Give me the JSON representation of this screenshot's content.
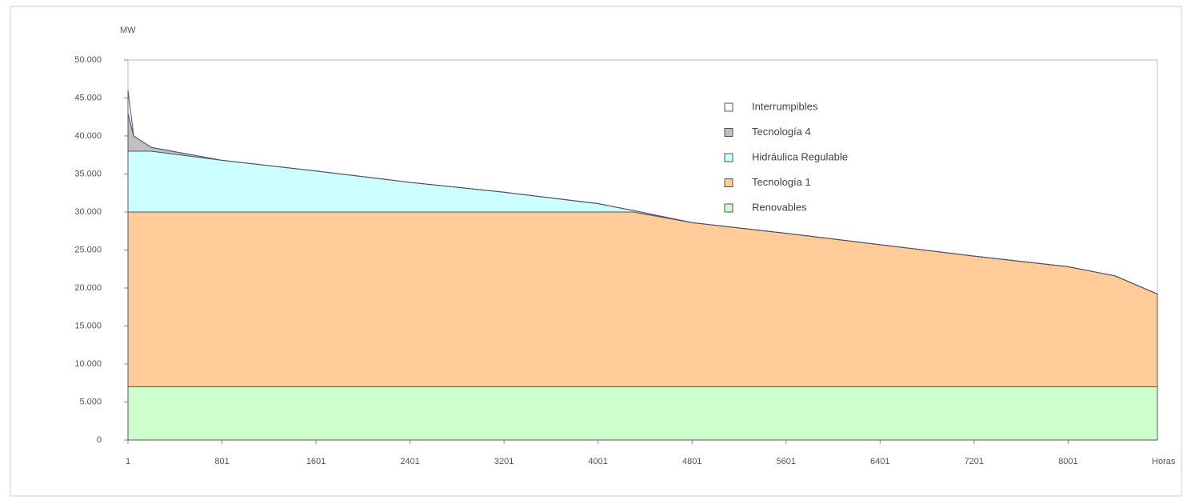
{
  "chart_data": {
    "type": "stacked-area",
    "y_label": "MW",
    "x_label": "Horas",
    "x": [
      1,
      50,
      200,
      801,
      1601,
      2401,
      3201,
      4001,
      4300,
      4801,
      5601,
      6401,
      7201,
      8001,
      8400,
      8761
    ],
    "xlim": [
      1,
      8761
    ],
    "xticks": [
      1,
      801,
      1601,
      2401,
      3201,
      4001,
      4801,
      5601,
      6401,
      7201,
      8001
    ],
    "ylim": [
      0,
      50000
    ],
    "yticks": [
      {
        "value": 0,
        "label": "0"
      },
      {
        "value": 5000,
        "label": "5.000"
      },
      {
        "value": 10000,
        "label": "10.000"
      },
      {
        "value": 15000,
        "label": "15.000"
      },
      {
        "value": 20000,
        "label": "20.000"
      },
      {
        "value": 25000,
        "label": "25.000"
      },
      {
        "value": 30000,
        "label": "30.000"
      },
      {
        "value": 35000,
        "label": "35.000"
      },
      {
        "value": 40000,
        "label": "40.000"
      },
      {
        "value": 45000,
        "label": "45.000"
      },
      {
        "value": 50000,
        "label": "50.000"
      }
    ],
    "grid": false,
    "legend": "upper-right",
    "series": [
      {
        "name": "Interrumpibles",
        "color": "#ffffff",
        "values": [
          3000,
          0,
          0,
          0,
          0,
          0,
          0,
          0,
          0,
          0,
          0,
          0,
          0,
          0,
          0,
          0
        ]
      },
      {
        "name": "Tecnología  4",
        "color": "#c0c0c0",
        "values": [
          5000,
          2000,
          500,
          0,
          0,
          0,
          0,
          0,
          0,
          0,
          0,
          0,
          0,
          0,
          0,
          0
        ]
      },
      {
        "name": "Hidráulica Regulable",
        "color": "#ccffff",
        "values": [
          8000,
          8000,
          8000,
          6800,
          5400,
          3900,
          2600,
          1100,
          200,
          0,
          0,
          0,
          0,
          0,
          0,
          0
        ]
      },
      {
        "name": "Tecnología  1",
        "color": "#ffcc99",
        "values": [
          23000,
          23000,
          23000,
          23000,
          23000,
          23000,
          23000,
          23000,
          23000,
          21600,
          20200,
          18700,
          17200,
          15800,
          14600,
          12200
        ]
      },
      {
        "name": "Renovables",
        "color": "#ccffcc",
        "values": [
          7000,
          7000,
          7000,
          7000,
          7000,
          7000,
          7000,
          7000,
          7000,
          7000,
          7000,
          7000,
          7000,
          7000,
          7000,
          7000
        ]
      }
    ]
  }
}
